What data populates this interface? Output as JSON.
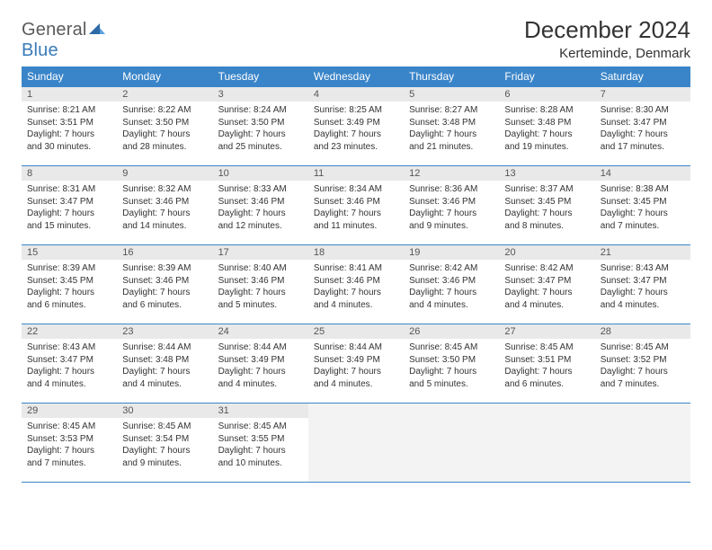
{
  "logo": {
    "general": "General",
    "blue": "Blue"
  },
  "title": "December 2024",
  "location": "Kerteminde, Denmark",
  "headerDays": [
    "Sunday",
    "Monday",
    "Tuesday",
    "Wednesday",
    "Thursday",
    "Friday",
    "Saturday"
  ],
  "colors": {
    "headerBg": "#3a85c9",
    "headerText": "#ffffff",
    "dayStrip": "#e9e9e9",
    "rowBorder": "#3a85c9",
    "emptyCell": "#f3f3f3",
    "logoBlue": "#3a7ab8"
  },
  "weeks": [
    [
      {
        "num": "1",
        "sunrise": "Sunrise: 8:21 AM",
        "sunset": "Sunset: 3:51 PM",
        "dl1": "Daylight: 7 hours",
        "dl2": "and 30 minutes."
      },
      {
        "num": "2",
        "sunrise": "Sunrise: 8:22 AM",
        "sunset": "Sunset: 3:50 PM",
        "dl1": "Daylight: 7 hours",
        "dl2": "and 28 minutes."
      },
      {
        "num": "3",
        "sunrise": "Sunrise: 8:24 AM",
        "sunset": "Sunset: 3:50 PM",
        "dl1": "Daylight: 7 hours",
        "dl2": "and 25 minutes."
      },
      {
        "num": "4",
        "sunrise": "Sunrise: 8:25 AM",
        "sunset": "Sunset: 3:49 PM",
        "dl1": "Daylight: 7 hours",
        "dl2": "and 23 minutes."
      },
      {
        "num": "5",
        "sunrise": "Sunrise: 8:27 AM",
        "sunset": "Sunset: 3:48 PM",
        "dl1": "Daylight: 7 hours",
        "dl2": "and 21 minutes."
      },
      {
        "num": "6",
        "sunrise": "Sunrise: 8:28 AM",
        "sunset": "Sunset: 3:48 PM",
        "dl1": "Daylight: 7 hours",
        "dl2": "and 19 minutes."
      },
      {
        "num": "7",
        "sunrise": "Sunrise: 8:30 AM",
        "sunset": "Sunset: 3:47 PM",
        "dl1": "Daylight: 7 hours",
        "dl2": "and 17 minutes."
      }
    ],
    [
      {
        "num": "8",
        "sunrise": "Sunrise: 8:31 AM",
        "sunset": "Sunset: 3:47 PM",
        "dl1": "Daylight: 7 hours",
        "dl2": "and 15 minutes."
      },
      {
        "num": "9",
        "sunrise": "Sunrise: 8:32 AM",
        "sunset": "Sunset: 3:46 PM",
        "dl1": "Daylight: 7 hours",
        "dl2": "and 14 minutes."
      },
      {
        "num": "10",
        "sunrise": "Sunrise: 8:33 AM",
        "sunset": "Sunset: 3:46 PM",
        "dl1": "Daylight: 7 hours",
        "dl2": "and 12 minutes."
      },
      {
        "num": "11",
        "sunrise": "Sunrise: 8:34 AM",
        "sunset": "Sunset: 3:46 PM",
        "dl1": "Daylight: 7 hours",
        "dl2": "and 11 minutes."
      },
      {
        "num": "12",
        "sunrise": "Sunrise: 8:36 AM",
        "sunset": "Sunset: 3:46 PM",
        "dl1": "Daylight: 7 hours",
        "dl2": "and 9 minutes."
      },
      {
        "num": "13",
        "sunrise": "Sunrise: 8:37 AM",
        "sunset": "Sunset: 3:45 PM",
        "dl1": "Daylight: 7 hours",
        "dl2": "and 8 minutes."
      },
      {
        "num": "14",
        "sunrise": "Sunrise: 8:38 AM",
        "sunset": "Sunset: 3:45 PM",
        "dl1": "Daylight: 7 hours",
        "dl2": "and 7 minutes."
      }
    ],
    [
      {
        "num": "15",
        "sunrise": "Sunrise: 8:39 AM",
        "sunset": "Sunset: 3:45 PM",
        "dl1": "Daylight: 7 hours",
        "dl2": "and 6 minutes."
      },
      {
        "num": "16",
        "sunrise": "Sunrise: 8:39 AM",
        "sunset": "Sunset: 3:46 PM",
        "dl1": "Daylight: 7 hours",
        "dl2": "and 6 minutes."
      },
      {
        "num": "17",
        "sunrise": "Sunrise: 8:40 AM",
        "sunset": "Sunset: 3:46 PM",
        "dl1": "Daylight: 7 hours",
        "dl2": "and 5 minutes."
      },
      {
        "num": "18",
        "sunrise": "Sunrise: 8:41 AM",
        "sunset": "Sunset: 3:46 PM",
        "dl1": "Daylight: 7 hours",
        "dl2": "and 4 minutes."
      },
      {
        "num": "19",
        "sunrise": "Sunrise: 8:42 AM",
        "sunset": "Sunset: 3:46 PM",
        "dl1": "Daylight: 7 hours",
        "dl2": "and 4 minutes."
      },
      {
        "num": "20",
        "sunrise": "Sunrise: 8:42 AM",
        "sunset": "Sunset: 3:47 PM",
        "dl1": "Daylight: 7 hours",
        "dl2": "and 4 minutes."
      },
      {
        "num": "21",
        "sunrise": "Sunrise: 8:43 AM",
        "sunset": "Sunset: 3:47 PM",
        "dl1": "Daylight: 7 hours",
        "dl2": "and 4 minutes."
      }
    ],
    [
      {
        "num": "22",
        "sunrise": "Sunrise: 8:43 AM",
        "sunset": "Sunset: 3:47 PM",
        "dl1": "Daylight: 7 hours",
        "dl2": "and 4 minutes."
      },
      {
        "num": "23",
        "sunrise": "Sunrise: 8:44 AM",
        "sunset": "Sunset: 3:48 PM",
        "dl1": "Daylight: 7 hours",
        "dl2": "and 4 minutes."
      },
      {
        "num": "24",
        "sunrise": "Sunrise: 8:44 AM",
        "sunset": "Sunset: 3:49 PM",
        "dl1": "Daylight: 7 hours",
        "dl2": "and 4 minutes."
      },
      {
        "num": "25",
        "sunrise": "Sunrise: 8:44 AM",
        "sunset": "Sunset: 3:49 PM",
        "dl1": "Daylight: 7 hours",
        "dl2": "and 4 minutes."
      },
      {
        "num": "26",
        "sunrise": "Sunrise: 8:45 AM",
        "sunset": "Sunset: 3:50 PM",
        "dl1": "Daylight: 7 hours",
        "dl2": "and 5 minutes."
      },
      {
        "num": "27",
        "sunrise": "Sunrise: 8:45 AM",
        "sunset": "Sunset: 3:51 PM",
        "dl1": "Daylight: 7 hours",
        "dl2": "and 6 minutes."
      },
      {
        "num": "28",
        "sunrise": "Sunrise: 8:45 AM",
        "sunset": "Sunset: 3:52 PM",
        "dl1": "Daylight: 7 hours",
        "dl2": "and 7 minutes."
      }
    ],
    [
      {
        "num": "29",
        "sunrise": "Sunrise: 8:45 AM",
        "sunset": "Sunset: 3:53 PM",
        "dl1": "Daylight: 7 hours",
        "dl2": "and 7 minutes."
      },
      {
        "num": "30",
        "sunrise": "Sunrise: 8:45 AM",
        "sunset": "Sunset: 3:54 PM",
        "dl1": "Daylight: 7 hours",
        "dl2": "and 9 minutes."
      },
      {
        "num": "31",
        "sunrise": "Sunrise: 8:45 AM",
        "sunset": "Sunset: 3:55 PM",
        "dl1": "Daylight: 7 hours",
        "dl2": "and 10 minutes."
      },
      null,
      null,
      null,
      null
    ]
  ]
}
